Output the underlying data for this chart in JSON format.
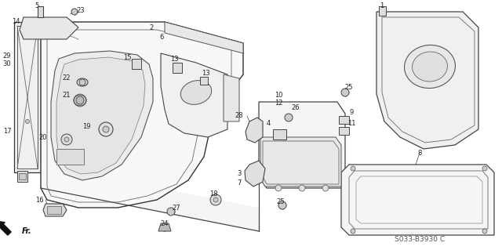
{
  "bg_color": "#ffffff",
  "fig_width": 6.4,
  "fig_height": 3.19,
  "dpi": 100,
  "diagram_code": "S033-B3930 C",
  "lc": "#333333",
  "lw": 0.8,
  "label_fs": 6.0
}
